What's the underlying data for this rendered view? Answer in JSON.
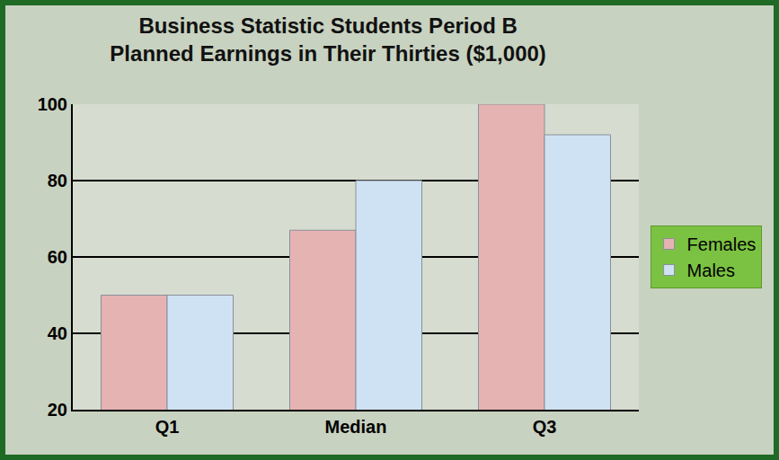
{
  "chart_data": {
    "type": "bar",
    "title": "Business Statistic Students Period B\nPlanned Earnings in Their Thirties ($1,000)",
    "categories": [
      "Q1",
      "Median",
      "Q3"
    ],
    "series": [
      {
        "name": "Females",
        "color": "#e6b3b3",
        "values": [
          50,
          67,
          100
        ]
      },
      {
        "name": "Males",
        "color": "#cfe2f3",
        "values": [
          50,
          80,
          92
        ]
      }
    ],
    "ylim": [
      20,
      100
    ],
    "yticks": [
      20,
      40,
      60,
      80,
      100
    ],
    "grid": true,
    "legend": "right"
  }
}
